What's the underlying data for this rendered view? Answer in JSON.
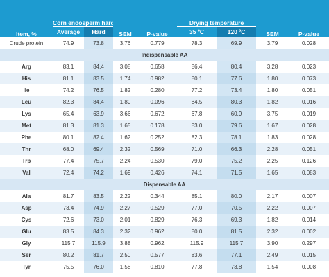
{
  "header": {
    "item_label": "Item, %",
    "group1_label": "Corn endosperm hardness",
    "group1_sub": [
      "Average",
      "Hard"
    ],
    "sem1_label": "SEM",
    "pvalue1_label": "P-value",
    "group2_label": "Drying temperature",
    "group2_sub": [
      "35 ºC",
      "120 ºC"
    ],
    "sem2_label": "SEM",
    "pvalue2_label": "P-value"
  },
  "rows": [
    {
      "type": "data",
      "label": "Crude protein",
      "plain": true,
      "values": [
        "74.9",
        "73.8",
        "3.76",
        "0.779",
        "78.3",
        "69.9",
        "3.79",
        "0.028"
      ]
    },
    {
      "type": "section",
      "label": "Indispensable AA"
    },
    {
      "type": "data",
      "label": "Arg",
      "values": [
        "83.1",
        "84.4",
        "3.08",
        "0.658",
        "86.4",
        "80.4",
        "3.28",
        "0.023"
      ]
    },
    {
      "type": "data",
      "label": "His",
      "values": [
        "81.1",
        "83.5",
        "1.74",
        "0.982",
        "80.1",
        "77.6",
        "1.80",
        "0.073"
      ]
    },
    {
      "type": "data",
      "label": "Ile",
      "values": [
        "74.2",
        "76.5",
        "1.82",
        "0.280",
        "77.2",
        "73.4",
        "1.80",
        "0.051"
      ]
    },
    {
      "type": "data",
      "label": "Leu",
      "values": [
        "82.3",
        "84.4",
        "1.80",
        "0.096",
        "84.5",
        "80.3",
        "1.82",
        "0.016"
      ]
    },
    {
      "type": "data",
      "label": "Lys",
      "values": [
        "65.4",
        "63.9",
        "3.66",
        "0.672",
        "67.8",
        "60.9",
        "3.75",
        "0.019"
      ]
    },
    {
      "type": "data",
      "label": "Met",
      "values": [
        "81.3",
        "81.3",
        "1.65",
        "0.178",
        "83.0",
        "79.6",
        "1.67",
        "0.028"
      ]
    },
    {
      "type": "data",
      "label": "Phe",
      "values": [
        "80.1",
        "82.4",
        "1.62",
        "0.252",
        "82.3",
        "78.1",
        "1.83",
        "0.028"
      ]
    },
    {
      "type": "data",
      "label": "Thr",
      "values": [
        "68.0",
        "69.4",
        "2.32",
        "0.569",
        "71.0",
        "66.3",
        "2.28",
        "0.051"
      ]
    },
    {
      "type": "data",
      "label": "Trp",
      "values": [
        "77.4",
        "75.7",
        "2.24",
        "0.530",
        "79.0",
        "75.2",
        "2.25",
        "0.126"
      ]
    },
    {
      "type": "data",
      "label": "Val",
      "values": [
        "72.4",
        "74.2",
        "1.69",
        "0.426",
        "74.1",
        "71.5",
        "1.65",
        "0.083"
      ]
    },
    {
      "type": "section",
      "label": "Dispensable AA"
    },
    {
      "type": "data",
      "label": "Ala",
      "values": [
        "81.7",
        "83.5",
        "2.22",
        "0.344",
        "85.1",
        "80.0",
        "2.17",
        "0.007"
      ]
    },
    {
      "type": "data",
      "label": "Asp",
      "values": [
        "73.4",
        "74.9",
        "2.27",
        "0.529",
        "77.0",
        "70.5",
        "2.22",
        "0.007"
      ]
    },
    {
      "type": "data",
      "label": "Cys",
      "values": [
        "72.6",
        "73.0",
        "2.01",
        "0.829",
        "76.3",
        "69.3",
        "1.82",
        "0.014"
      ]
    },
    {
      "type": "data",
      "label": "Glu",
      "values": [
        "83.5",
        "84.3",
        "2.32",
        "0.962",
        "80.0",
        "81.5",
        "2.32",
        "0.002"
      ]
    },
    {
      "type": "data",
      "label": "Gly",
      "values": [
        "115.7",
        "115.9",
        "3.88",
        "0.962",
        "115.9",
        "115.7",
        "3.90",
        "0.297"
      ]
    },
    {
      "type": "data",
      "label": "Ser",
      "values": [
        "80.2",
        "81.7",
        "2.50",
        "0.577",
        "83.6",
        "77.1",
        "2.49",
        "0.015"
      ]
    },
    {
      "type": "data",
      "label": "Tyr",
      "values": [
        "75.5",
        "76.0",
        "1.58",
        "0.810",
        "77.8",
        "73.8",
        "1.54",
        "0.008"
      ]
    }
  ]
}
